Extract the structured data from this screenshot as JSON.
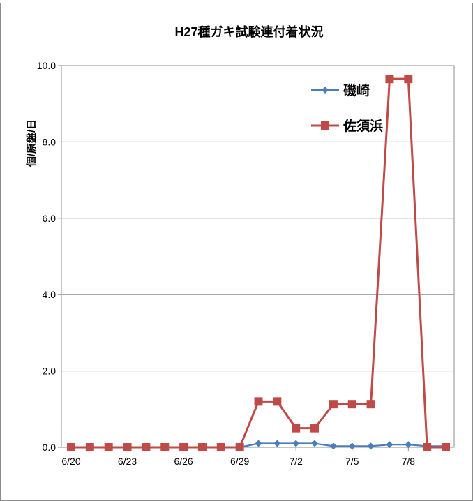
{
  "chart_data": {
    "type": "line",
    "title": "H27種ガキ試験連付着状況",
    "xlabel": "",
    "ylabel": "個/原盤/日",
    "ylim": [
      0,
      10
    ],
    "yticks": [
      "0.0",
      "2.0",
      "4.0",
      "6.0",
      "8.0",
      "10.0"
    ],
    "x": [
      "6/20",
      "6/21",
      "6/22",
      "6/23",
      "6/24",
      "6/25",
      "6/26",
      "6/27",
      "6/28",
      "6/29",
      "6/30",
      "7/1",
      "7/2",
      "7/3",
      "7/4",
      "7/5",
      "7/6",
      "7/7",
      "7/8",
      "7/9",
      "7/10"
    ],
    "xtick_labels": [
      "6/20",
      "6/23",
      "6/26",
      "6/29",
      "7/2",
      "7/5",
      "7/8"
    ],
    "grid": true,
    "legend_position": "top-right",
    "series": [
      {
        "name": "磯崎",
        "color": "#4a7ebb",
        "marker": "diamond",
        "values": [
          0,
          0,
          0,
          0,
          0,
          0,
          0,
          0,
          0,
          0,
          0.1,
          0.1,
          0.1,
          0.1,
          0.03,
          0.03,
          0.03,
          0.07,
          0.07,
          0.03,
          0.03
        ]
      },
      {
        "name": "佐須浜",
        "color": "#be4b48",
        "marker": "square",
        "values": [
          0,
          0,
          0,
          0,
          0,
          0,
          0,
          0,
          0,
          0,
          1.2,
          1.2,
          0.5,
          0.5,
          1.13,
          1.13,
          1.13,
          9.65,
          9.65,
          0,
          0
        ]
      }
    ]
  }
}
